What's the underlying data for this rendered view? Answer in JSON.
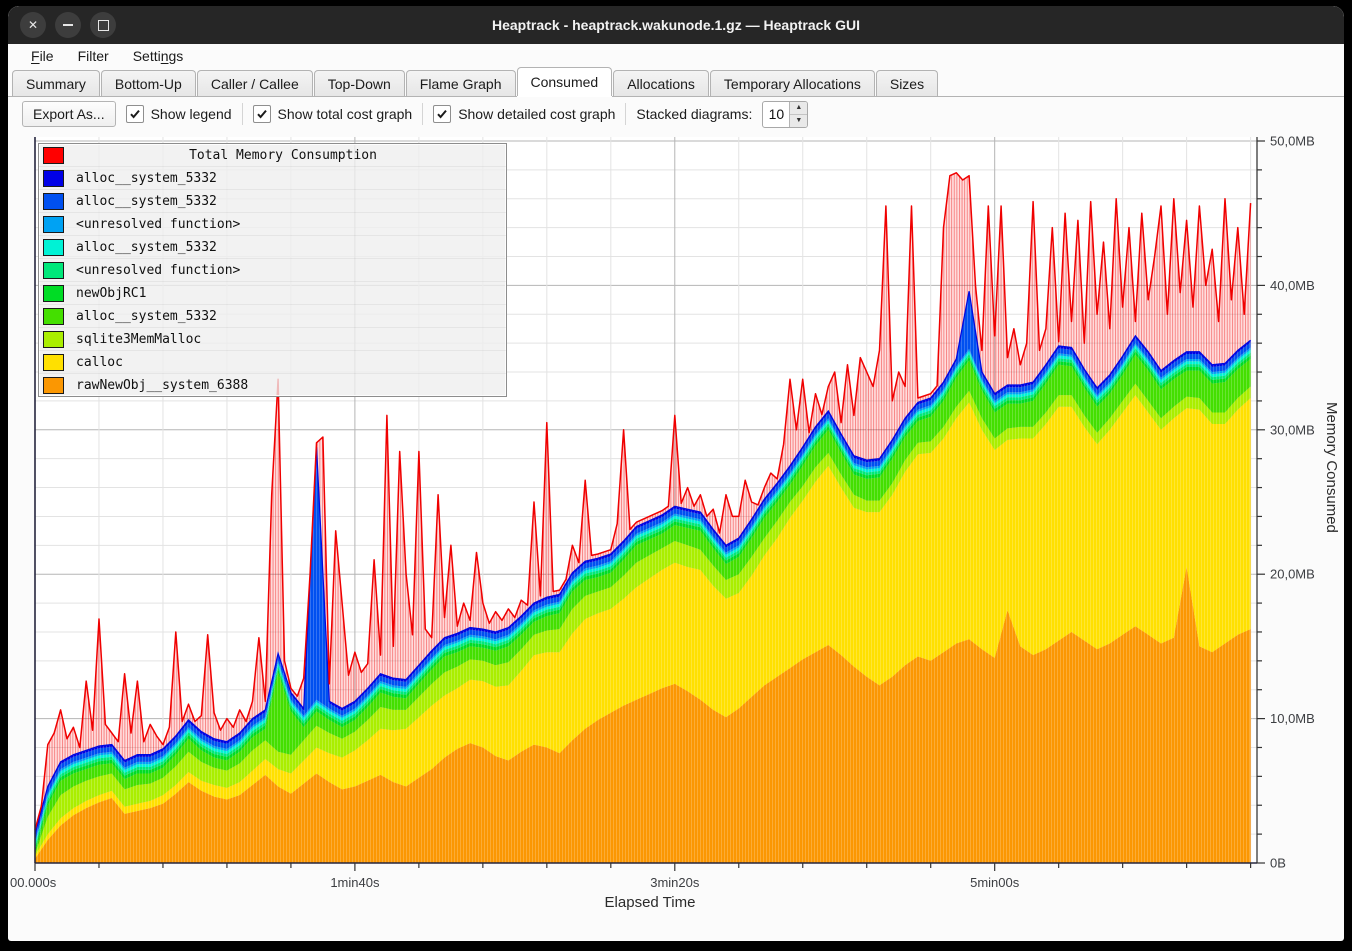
{
  "window": {
    "title": "Heaptrack - heaptrack.wakunode.1.gz — Heaptrack GUI",
    "controls": [
      {
        "name": "close"
      },
      {
        "name": "minimize"
      },
      {
        "name": "maximize"
      }
    ]
  },
  "menubar": {
    "items": [
      {
        "label": "File",
        "mnemonic_index": 0
      },
      {
        "label": "Filter",
        "mnemonic_index": -1
      },
      {
        "label": "Settings",
        "mnemonic_index": 5
      }
    ]
  },
  "tabbar": {
    "active_index": 5,
    "tabs": [
      "Summary",
      "Bottom-Up",
      "Caller / Callee",
      "Top-Down",
      "Flame Graph",
      "Consumed",
      "Allocations",
      "Temporary Allocations",
      "Sizes"
    ]
  },
  "toolbar": {
    "export_button": "Export As...",
    "checkboxes": [
      {
        "label": "Show legend",
        "checked": true
      },
      {
        "label": "Show total cost graph",
        "checked": true
      },
      {
        "label": "Show detailed cost graph",
        "checked": true
      }
    ],
    "stacked_diagrams_label": "Stacked diagrams:",
    "stacked_diagrams_value": "10"
  },
  "chart_data": {
    "type": "area",
    "stacked": true,
    "title": "Total Memory Consumption",
    "xlabel": "Elapsed Time",
    "ylabel": "Memory Consumed",
    "xlim": [
      0,
      382
    ],
    "ylim": [
      0,
      50
    ],
    "x_unit": "s",
    "y_unit": "MB",
    "grid": {
      "minor_x_step_s": 20,
      "major_x_step_s": 100,
      "minor_y_step_mb": 2,
      "major_y_step_mb": 10
    },
    "x_ticks": [
      {
        "t": 0,
        "label": "00.000s"
      },
      {
        "t": 100,
        "label": "1min40s"
      },
      {
        "t": 200,
        "label": "3min20s"
      },
      {
        "t": 300,
        "label": "5min00s"
      }
    ],
    "y_ticks": [
      {
        "v": 0,
        "label": "0B"
      },
      {
        "v": 10,
        "label": "10,0MB"
      },
      {
        "v": 20,
        "label": "20,0MB"
      },
      {
        "v": 30,
        "label": "30,0MB"
      },
      {
        "v": 40,
        "label": "40,0MB"
      },
      {
        "v": 50,
        "label": "50,0MB"
      }
    ],
    "legend": [
      {
        "label": "Total Memory Consumption",
        "color": "#ff0000"
      },
      {
        "label": "alloc__system_5332",
        "color": "#0000e6"
      },
      {
        "label": "alloc__system_5332",
        "color": "#0050f0"
      },
      {
        "label": "<unresolved function>",
        "color": "#00a2f3"
      },
      {
        "label": "alloc__system_5332",
        "color": "#00f2d5"
      },
      {
        "label": "<unresolved function>",
        "color": "#00e87a"
      },
      {
        "label": "newObjRC1",
        "color": "#00dc25"
      },
      {
        "label": "alloc__system_5332",
        "color": "#44df00"
      },
      {
        "label": "sqlite3MemMalloc",
        "color": "#aaee00"
      },
      {
        "label": "calloc",
        "color": "#ffe000"
      },
      {
        "label": "rawNewObj__system_6388",
        "color": "#fb9702"
      }
    ],
    "total": {
      "name": "Total Memory Consumption",
      "color": "#f00000",
      "x_step_s": 2,
      "values_mb": [
        1.0,
        3.5,
        8.2,
        9.0,
        10.6,
        8.6,
        9.4,
        8.0,
        12.6,
        9.2,
        16.9,
        9.6,
        9.0,
        8.4,
        13.1,
        9.0,
        12.6,
        8.4,
        9.6,
        8.8,
        8.2,
        9.4,
        16.0,
        9.8,
        11.0,
        9.2,
        10.2,
        15.8,
        10.4,
        9.2,
        10.0,
        9.4,
        10.6,
        9.6,
        11.2,
        15.6,
        11.2,
        25.5,
        33.5,
        14.0,
        12.0,
        11.2,
        12.8,
        11.6,
        13.4,
        29.5,
        12.4,
        23.0,
        18.0,
        13.0,
        14.6,
        13.2,
        13.8,
        21.0,
        14.4,
        31.0,
        15.0,
        28.5,
        20.0,
        15.8,
        28.5,
        16.2,
        15.6,
        25.5,
        17.0,
        22.0,
        16.4,
        18.0,
        16.8,
        21.5,
        18.0,
        16.6,
        17.4,
        16.8,
        17.6,
        16.6,
        18.2,
        17.4,
        25.0,
        18.0,
        30.5,
        18.6,
        17.8,
        19.0,
        22.0,
        18.4,
        26.5,
        19.2,
        18.6,
        20.0,
        19.2,
        23.5,
        30.0,
        20.4,
        19.6,
        20.2,
        24.0,
        19.8,
        20.6,
        21.0,
        31.0,
        21.2,
        26.0,
        22.5,
        25.5,
        23.0,
        24.5,
        22.0,
        25.5,
        24.0,
        24.0,
        26.5,
        25.0,
        24.5,
        26.0,
        27.0,
        24.0,
        29.0,
        33.5,
        30.0,
        33.5,
        27.5,
        32.5,
        29.5,
        33.0,
        34.0,
        30.5,
        34.5,
        31.0,
        35.0,
        34.0,
        33.0,
        35.5,
        45.5,
        32.0,
        34.0,
        33.0,
        45.5,
        31.5,
        30.5,
        32.5,
        32.5,
        44.0,
        47.6,
        47.8,
        47.3,
        47.6,
        40.0,
        35.5,
        45.5,
        36.5,
        45.5,
        35.0,
        37.0,
        34.5,
        36.0,
        45.8,
        35.5,
        37.0,
        44.0,
        36.0,
        45.0,
        37.5,
        44.5,
        36.0,
        45.8,
        38.0,
        43.0,
        37.0,
        46.0,
        38.5,
        44.0,
        37.5,
        45.0,
        39.0,
        42.0,
        45.5,
        38.0,
        46.0,
        39.5,
        44.5,
        38.5,
        45.5,
        40.0,
        42.5,
        37.5,
        46.0,
        39.0,
        44.0,
        38.0,
        45.7
      ]
    },
    "series": [
      {
        "name": "rawNewObj__system_6388",
        "color": "#fb9702",
        "x_step_s": 4,
        "values_mb": [
          0.3,
          1.6,
          2.6,
          3.3,
          3.8,
          4.2,
          4.5,
          3.4,
          3.6,
          3.8,
          4.1,
          4.8,
          5.6,
          5.0,
          4.6,
          4.4,
          4.7,
          5.4,
          6.1,
          5.3,
          4.8,
          5.5,
          6.2,
          5.6,
          5.1,
          5.3,
          5.7,
          6.1,
          5.6,
          5.3,
          5.9,
          6.5,
          7.3,
          7.9,
          8.3,
          8.0,
          7.4,
          7.1,
          7.7,
          8.2,
          8.0,
          7.6,
          8.5,
          9.3,
          9.9,
          10.4,
          10.9,
          11.3,
          11.7,
          12.1,
          12.4,
          11.9,
          11.3,
          10.6,
          10.1,
          10.7,
          11.5,
          12.3,
          12.9,
          13.5,
          14.1,
          14.6,
          15.1,
          14.4,
          13.6,
          12.9,
          12.3,
          12.9,
          13.7,
          14.3,
          14.0,
          14.6,
          15.2,
          15.5,
          14.8,
          14.2,
          17.5,
          15.0,
          14.4,
          14.8,
          15.4,
          16.0,
          15.4,
          14.8,
          15.2,
          15.8,
          16.4,
          15.8,
          15.2,
          15.6,
          20.5,
          15.0,
          14.6,
          15.2,
          15.8,
          16.2
        ]
      },
      {
        "name": "calloc",
        "color": "#ffe000",
        "x_step_s": 4,
        "values_mb": [
          0.2,
          0.4,
          0.5,
          0.5,
          0.5,
          0.5,
          0.5,
          0.5,
          0.5,
          0.5,
          0.6,
          0.6,
          0.7,
          0.7,
          0.8,
          0.8,
          0.9,
          1.0,
          1.1,
          1.2,
          1.4,
          1.6,
          1.8,
          2.0,
          2.2,
          2.5,
          2.8,
          3.2,
          3.6,
          4.0,
          4.2,
          4.4,
          4.3,
          4.2,
          4.4,
          4.6,
          4.8,
          5.2,
          5.6,
          6.2,
          6.6,
          7.0,
          7.4,
          7.6,
          7.4,
          7.2,
          7.4,
          7.8,
          8.0,
          8.2,
          8.4,
          8.6,
          9.0,
          8.6,
          8.2,
          8.0,
          8.4,
          9.0,
          9.6,
          10.4,
          11.0,
          11.8,
          12.4,
          11.6,
          11.0,
          11.4,
          12.0,
          12.6,
          13.4,
          14.0,
          14.4,
          14.8,
          15.6,
          16.4,
          15.2,
          14.4,
          11.8,
          14.4,
          15.0,
          15.6,
          16.2,
          15.6,
          14.8,
          14.2,
          14.8,
          15.4,
          16.0,
          15.4,
          14.8,
          15.2,
          11.0,
          16.4,
          15.8,
          15.2,
          15.6,
          16.0
        ]
      },
      {
        "name": "sqlite3MemMalloc",
        "color": "#aaee00",
        "x_step_s": 4,
        "values_mb": [
          0.1,
          1.2,
          1.6,
          1.5,
          1.4,
          1.3,
          1.2,
          1.2,
          1.3,
          1.2,
          1.2,
          1.3,
          1.4,
          1.3,
          1.2,
          1.2,
          1.3,
          1.4,
          1.3,
          1.2,
          1.3,
          1.4,
          1.5,
          1.4,
          1.3,
          1.3,
          1.4,
          1.5,
          1.4,
          1.3,
          1.4,
          1.5,
          1.6,
          1.5,
          1.4,
          1.4,
          1.5,
          1.6,
          1.5,
          1.4,
          1.5,
          1.6,
          1.7,
          1.6,
          1.5,
          1.5,
          1.6,
          1.7,
          1.6,
          1.5,
          1.5,
          1.5,
          1.4,
          1.4,
          1.3,
          1.3,
          1.3,
          1.2,
          1.2,
          1.1,
          1.0,
          1.0,
          0.9,
          0.9,
          0.9,
          0.8,
          0.8,
          0.8,
          0.8,
          0.8,
          0.8,
          0.8,
          0.8,
          0.8,
          0.8,
          0.8,
          0.8,
          0.8,
          0.8,
          0.8,
          0.8,
          0.8,
          0.8,
          0.8,
          0.8,
          0.8,
          0.8,
          0.8,
          0.8,
          0.8,
          0.8,
          0.8,
          0.8,
          0.8,
          0.8,
          0.8
        ]
      },
      {
        "name": "alloc__system_5332",
        "color": "#44df00",
        "x_step_s": 4,
        "values_mb": [
          0.1,
          0.8,
          1.0,
          0.9,
          0.8,
          0.8,
          0.7,
          0.7,
          0.8,
          0.7,
          0.7,
          0.8,
          0.9,
          0.8,
          0.7,
          0.7,
          0.8,
          0.9,
          0.8,
          5.5,
          3.0,
          0.9,
          1.0,
          0.9,
          0.8,
          0.8,
          0.9,
          1.0,
          0.9,
          0.8,
          0.9,
          1.0,
          1.1,
          1.0,
          0.9,
          0.9,
          1.0,
          1.1,
          1.0,
          0.9,
          1.0,
          1.1,
          1.2,
          1.1,
          1.0,
          1.0,
          1.1,
          1.2,
          1.1,
          1.0,
          1.1,
          1.2,
          1.3,
          1.2,
          1.1,
          1.2,
          1.3,
          1.4,
          1.3,
          1.2,
          1.4,
          1.5,
          1.6,
          1.5,
          1.4,
          1.5,
          1.6,
          1.7,
          1.6,
          1.5,
          1.7,
          1.8,
          2.0,
          2.1,
          1.9,
          1.8,
          1.7,
          1.6,
          1.8,
          2.0,
          2.1,
          2.0,
          1.9,
          1.8,
          1.7,
          1.8,
          2.0,
          2.1,
          2.0,
          1.9,
          1.8,
          1.9,
          2.0,
          2.1,
          2.0,
          1.9
        ]
      },
      {
        "name": "newObjRC1",
        "color": "#00dc25",
        "x_step_s": 4,
        "const_mb": 0.25
      },
      {
        "name": "<unresolved function>",
        "color": "#00e87a",
        "x_step_s": 4,
        "const_mb": 0.2
      },
      {
        "name": "alloc__system_5332",
        "color": "#00f2d5",
        "x_step_s": 4,
        "const_mb": 0.2
      },
      {
        "name": "<unresolved function>",
        "color": "#00a2f3",
        "x_step_s": 4,
        "const_mb": 0.15
      },
      {
        "name": "alloc__system_5332",
        "color": "#0050f0",
        "x_step_s": 4,
        "const_mb": 0.35,
        "spikes": [
          [
            88,
            17.0
          ],
          [
            292,
            3.5
          ]
        ]
      },
      {
        "name": "alloc__system_5332",
        "color": "#0000e6",
        "x_step_s": 4,
        "const_mb": 0.15
      }
    ]
  }
}
